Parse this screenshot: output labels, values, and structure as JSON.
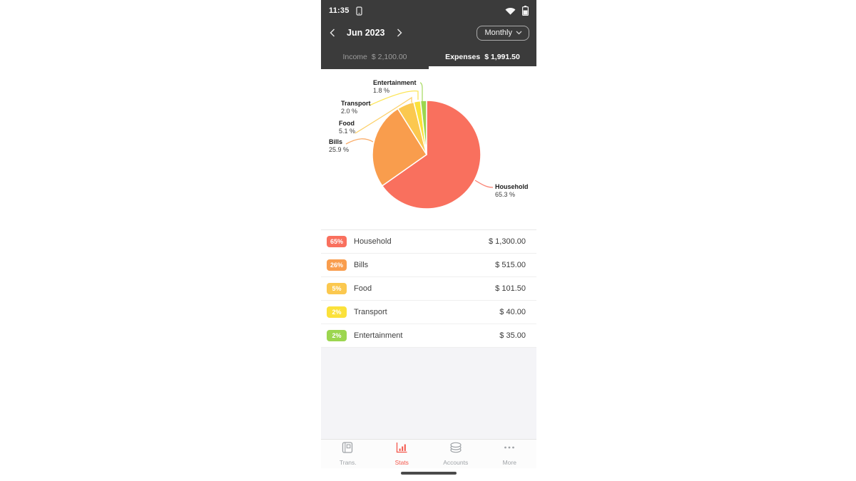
{
  "status_bar": {
    "time": "11:35"
  },
  "header": {
    "month": "Jun 2023",
    "period_selector": {
      "label": "Monthly"
    },
    "tabs": [
      {
        "label": "Income",
        "amount": "$ 2,100.00",
        "selected": false
      },
      {
        "label": "Expenses",
        "amount": "$ 1,991.50",
        "selected": true
      }
    ],
    "background": "#3b3b3b"
  },
  "chart_data": {
    "type": "pie",
    "start_angle_deg": 0,
    "direction": "clockwise",
    "slices": [
      {
        "label": "Household",
        "value": 65.3,
        "percent_label": "65.3 %",
        "color": "#f9705e"
      },
      {
        "label": "Bills",
        "value": 25.9,
        "percent_label": "25.9 %",
        "color": "#f99d4d"
      },
      {
        "label": "Food",
        "value": 5.1,
        "percent_label": "5.1 %",
        "color": "#fbc84f"
      },
      {
        "label": "Transport",
        "value": 2.0,
        "percent_label": "2.0 %",
        "color": "#fbe13a"
      },
      {
        "label": "Entertainment",
        "value": 1.8,
        "percent_label": "1.8 %",
        "color": "#9cd64f"
      }
    ]
  },
  "legend_rows": [
    {
      "badge": "65%",
      "category": "Household",
      "amount": "$ 1,300.00",
      "color": "#f9705e"
    },
    {
      "badge": "26%",
      "category": "Bills",
      "amount": "$ 515.00",
      "color": "#f99d4d"
    },
    {
      "badge": "5%",
      "category": "Food",
      "amount": "$ 101.50",
      "color": "#fbc84f"
    },
    {
      "badge": "2%",
      "category": "Transport",
      "amount": "$ 40.00",
      "color": "#fbe13a"
    },
    {
      "badge": "2%",
      "category": "Entertainment",
      "amount": "$ 35.00",
      "color": "#9cd64f"
    }
  ],
  "bottom_nav": {
    "active_color": "#f4564a",
    "inactive_color": "#9fa3a7",
    "items": [
      {
        "label": "Trans.",
        "icon": "ledger-icon",
        "active": false
      },
      {
        "label": "Stats",
        "icon": "stats-icon",
        "active": true
      },
      {
        "label": "Accounts",
        "icon": "accounts-icon",
        "active": false
      },
      {
        "label": "More",
        "icon": "more-icon",
        "active": false
      }
    ]
  }
}
